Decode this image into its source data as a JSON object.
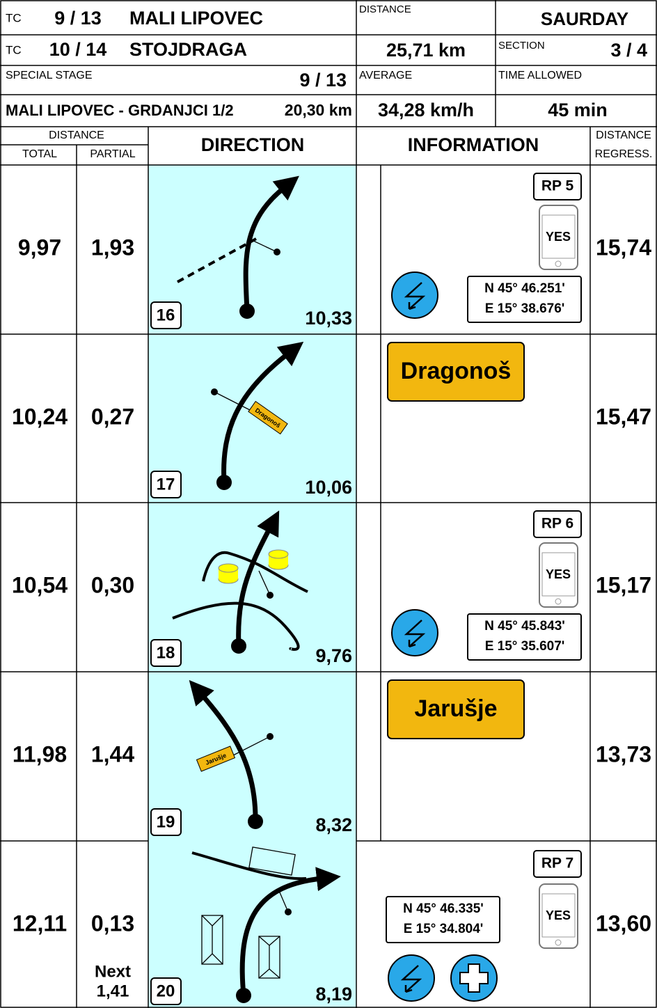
{
  "header": {
    "tc": [
      {
        "label": "TC",
        "number": "9 / 13",
        "name": "MALI LIPOVEC"
      },
      {
        "label": "TC",
        "number": "10 / 14",
        "name": "STOJDRAGA"
      }
    ],
    "distance": {
      "label": "DISTANCE",
      "value": "25,71 km"
    },
    "day": "SAURDAY",
    "section": {
      "label": "SECTION",
      "value": "3 / 4"
    },
    "special_stage": {
      "label": "SPECIAL STAGE",
      "number": "9 / 13",
      "name": "MALI LIPOVEC - GRDANJCI 1/2",
      "length": "20,30 km"
    },
    "average": {
      "label": "AVERAGE",
      "value": "34,28 km/h"
    },
    "time_allowed": {
      "label": "TIME ALLOWED",
      "value": "45 min"
    }
  },
  "columns": {
    "distance": "DISTANCE",
    "total": "TOTAL",
    "partial": "PARTIAL",
    "direction": "DIRECTION",
    "information": "INFORMATION",
    "regress_top": "DISTANCE",
    "regress_bottom": "REGRESS."
  },
  "rows": [
    {
      "total": "9,97",
      "partial": "1,93",
      "box": "16",
      "distance": "10,33",
      "regress": "15,74",
      "rp": "RP 5",
      "phone": "YES",
      "coords": [
        "N 45° 46.251'",
        "E 15° 38.676'"
      ]
    },
    {
      "total": "10,24",
      "partial": "0,27",
      "box": "17",
      "distance": "10,06",
      "regress": "15,47",
      "sign": "Dragonoš"
    },
    {
      "total": "10,54",
      "partial": "0,30",
      "box": "18",
      "distance": "9,76",
      "regress": "15,17",
      "rp": "RP 6",
      "phone": "YES",
      "coords": [
        "N 45° 45.843'",
        "E 15° 35.607'"
      ]
    },
    {
      "total": "11,98",
      "partial": "1,44",
      "box": "19",
      "distance": "8,32",
      "regress": "13,73",
      "sign": "Jarušje"
    },
    {
      "total": "12,11",
      "partial": "0,13",
      "next": [
        "Next",
        "1,41"
      ],
      "box": "20",
      "distance": "8,19",
      "regress": "13,60",
      "rp": "RP 7",
      "phone": "YES",
      "coords": [
        "N 45° 46.335'",
        "E 15° 34.804'"
      ]
    }
  ]
}
